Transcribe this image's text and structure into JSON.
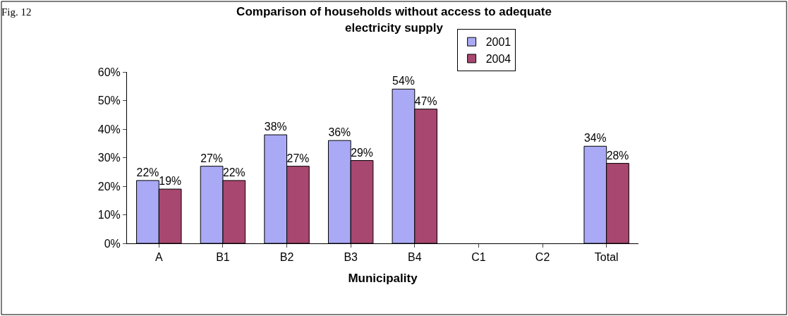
{
  "chart_data": {
    "type": "bar",
    "title": "Comparison of households without access to adequate electricity supply",
    "xlabel": "Municipality",
    "categories": [
      "A",
      "B1",
      "B2",
      "B3",
      "B4",
      "C1",
      "C2",
      "Total"
    ],
    "series": [
      {
        "name": "2001",
        "color": "#a9a9f5",
        "values": [
          22,
          27,
          38,
          36,
          54,
          null,
          null,
          34
        ],
        "value_labels": [
          "22%",
          "27%",
          "38%",
          "36%",
          "54%",
          null,
          null,
          "34%"
        ]
      },
      {
        "name": "2004",
        "color": "#a8476f",
        "values": [
          19,
          22,
          27,
          29,
          47,
          null,
          null,
          28
        ],
        "value_labels": [
          "19%",
          "22%",
          "27%",
          "29%",
          "47%",
          null,
          null,
          "28%"
        ]
      }
    ],
    "ylim": [
      0,
      60
    ],
    "yticks": [
      {
        "value": 0,
        "label": "0%"
      },
      {
        "value": 10,
        "label": "10%"
      },
      {
        "value": 20,
        "label": "20%"
      },
      {
        "value": 30,
        "label": "30%"
      },
      {
        "value": 40,
        "label": "40%"
      },
      {
        "value": 50,
        "label": "50%"
      },
      {
        "value": 60,
        "label": "60%"
      }
    ],
    "legend": "top right",
    "annotations": [
      "Fig. 12"
    ]
  }
}
